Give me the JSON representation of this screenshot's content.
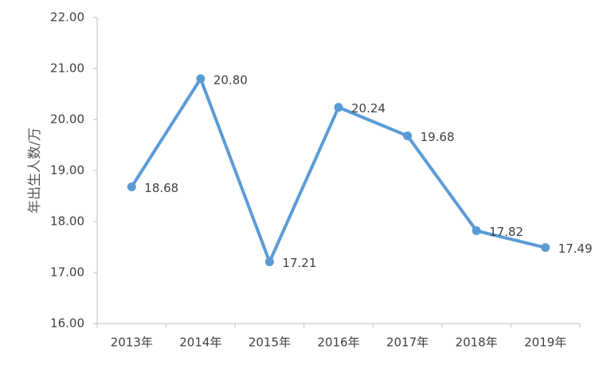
{
  "chart_data": {
    "type": "line",
    "y_label": "年出生人数/万",
    "categories": [
      "2013年",
      "2014年",
      "2015年",
      "2016年",
      "2017年",
      "2018年",
      "2019年"
    ],
    "values": [
      18.68,
      20.8,
      17.21,
      20.24,
      19.68,
      17.82,
      17.49
    ],
    "value_labels": [
      "18.68",
      "20.80",
      "17.21",
      "20.24",
      "19.68",
      "17.82",
      "17.49"
    ],
    "color": "#5b9bd5",
    "ylim": [
      16,
      22
    ],
    "yticks": [
      {
        "value": 16,
        "label": "16.00"
      },
      {
        "value": 17,
        "label": "17.00"
      },
      {
        "value": 18,
        "label": "18.00"
      },
      {
        "value": 19,
        "label": "19.00"
      },
      {
        "value": 20,
        "label": "20.00"
      },
      {
        "value": 21,
        "label": "21.00"
      },
      {
        "value": 22,
        "label": "22.00"
      }
    ],
    "grid": false
  }
}
